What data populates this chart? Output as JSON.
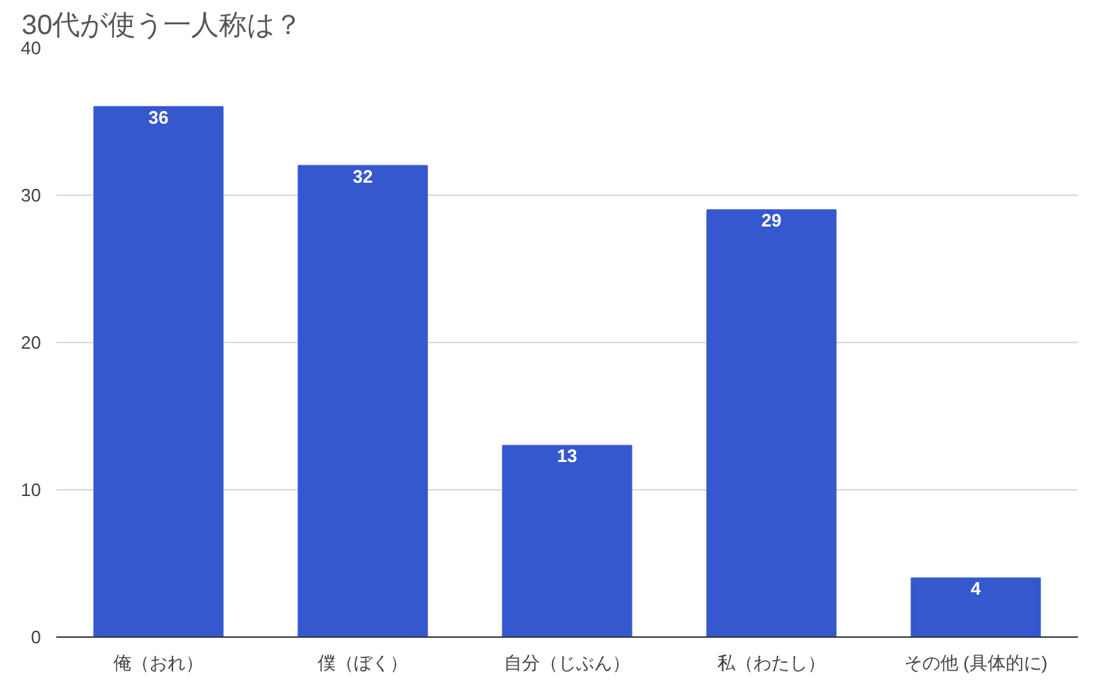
{
  "chart_data": {
    "type": "bar",
    "title": "30代が使う一人称は？",
    "categories": [
      "俺（おれ）",
      "僕（ぼく）",
      "自分（じぶん）",
      "私（わたし）",
      "その他 (具体的に)"
    ],
    "values": [
      36,
      32,
      13,
      29,
      4
    ],
    "color": "#3558cf",
    "ylim": [
      0,
      40
    ],
    "yticks": [
      0,
      10,
      20,
      30,
      40
    ],
    "grid": "y",
    "data_labels": true
  }
}
